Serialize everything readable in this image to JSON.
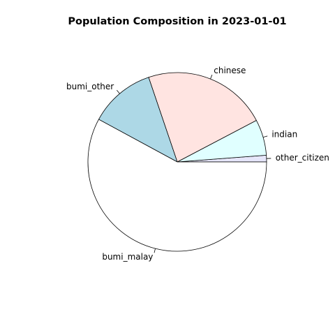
{
  "chart_data": {
    "type": "pie",
    "title": "Population Composition in 2023-01-01",
    "categories": [
      "other_citizen",
      "indian",
      "chinese",
      "bumi_other",
      "bumi_malay"
    ],
    "values": [
      1.2,
      6.5,
      22.5,
      11.9,
      57.9
    ],
    "colors": [
      "#e6e6fa",
      "#e0ffff",
      "#ffe4e1",
      "#add8e6",
      "#ffffff"
    ],
    "start_angle_deg": 0,
    "direction": "counterclockwise",
    "legend": "none",
    "grid": false
  }
}
